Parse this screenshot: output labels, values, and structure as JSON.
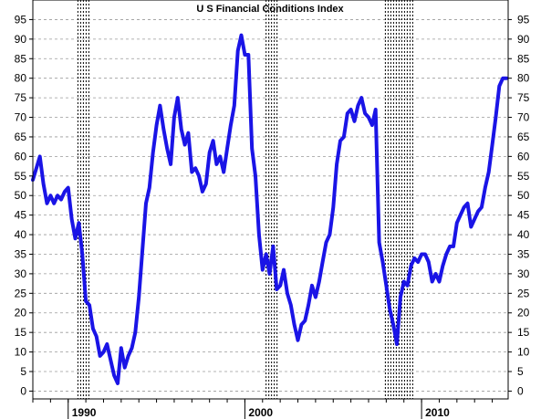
{
  "chart_data": {
    "type": "line",
    "title": "U S Financial Conditions Index",
    "xlabel": "",
    "ylabel": "",
    "x_start": 1988,
    "x_end": 2014.9,
    "ylim": [
      -2,
      100
    ],
    "grid": true,
    "y_ticks": [
      "0",
      "5",
      "10",
      "15",
      "20",
      "25",
      "30",
      "35",
      "40",
      "45",
      "50",
      "55",
      "60",
      "65",
      "70",
      "75",
      "80",
      "85",
      "90",
      "95"
    ],
    "x_tick_labels": [
      {
        "year": 1990,
        "label": "1990"
      },
      {
        "year": 2000,
        "label": "2000"
      },
      {
        "year": 2010,
        "label": "2010"
      }
    ],
    "shaded_periods": [
      {
        "start": 1990.55,
        "end": 1991.2
      },
      {
        "start": 2001.2,
        "end": 2001.9
      },
      {
        "start": 2007.95,
        "end": 2009.5
      }
    ],
    "series": [
      {
        "color": "#1a14e6",
        "x": [
          1988.0,
          1988.2,
          1988.4,
          1988.6,
          1988.8,
          1989.0,
          1989.2,
          1989.4,
          1989.6,
          1989.8,
          1990.0,
          1990.2,
          1990.4,
          1990.6,
          1990.8,
          1991.0,
          1991.2,
          1991.4,
          1991.6,
          1991.8,
          1992.0,
          1992.2,
          1992.4,
          1992.6,
          1992.8,
          1993.0,
          1993.2,
          1993.4,
          1993.6,
          1993.8,
          1994.0,
          1994.2,
          1994.4,
          1994.6,
          1994.8,
          1995.0,
          1995.2,
          1995.4,
          1995.6,
          1995.8,
          1996.0,
          1996.2,
          1996.4,
          1996.6,
          1996.8,
          1997.0,
          1997.2,
          1997.4,
          1997.6,
          1997.8,
          1998.0,
          1998.2,
          1998.4,
          1998.6,
          1998.8,
          1999.0,
          1999.2,
          1999.4,
          1999.6,
          1999.8,
          2000.0,
          2000.2,
          2000.4,
          2000.6,
          2000.8,
          2001.0,
          2001.2,
          2001.4,
          2001.6,
          2001.8,
          2002.0,
          2002.2,
          2002.4,
          2002.6,
          2002.8,
          2003.0,
          2003.2,
          2003.4,
          2003.6,
          2003.8,
          2004.0,
          2004.2,
          2004.4,
          2004.6,
          2004.8,
          2005.0,
          2005.2,
          2005.4,
          2005.6,
          2005.8,
          2006.0,
          2006.2,
          2006.4,
          2006.6,
          2006.8,
          2007.0,
          2007.2,
          2007.4,
          2007.6,
          2007.8,
          2008.0,
          2008.2,
          2008.4,
          2008.6,
          2008.8,
          2009.0,
          2009.2,
          2009.4,
          2009.6,
          2009.8,
          2010.0,
          2010.2,
          2010.4,
          2010.6,
          2010.8,
          2011.0,
          2011.2,
          2011.4,
          2011.6,
          2011.8,
          2012.0,
          2012.2,
          2012.4,
          2012.6,
          2012.8,
          2013.0,
          2013.2,
          2013.4,
          2013.6,
          2013.8,
          2014.0,
          2014.2,
          2014.4,
          2014.6,
          2014.8
        ],
        "y": [
          54,
          57,
          60,
          53,
          48,
          50,
          48,
          50,
          49,
          51,
          52,
          44,
          39,
          43,
          35,
          23,
          22,
          16,
          14,
          9,
          10,
          12,
          8,
          4,
          2,
          11,
          6,
          9,
          11,
          15,
          24,
          36,
          48,
          52,
          61,
          68,
          73,
          67,
          62,
          58,
          70,
          75,
          67,
          63,
          66,
          56,
          57,
          55,
          51,
          53,
          61,
          64,
          58,
          60,
          56,
          62,
          68,
          73,
          87,
          91,
          86,
          86,
          62,
          55,
          40,
          31,
          35,
          30,
          37,
          26,
          27,
          31,
          25,
          22,
          17,
          13,
          17,
          18,
          22,
          27,
          24,
          28,
          33,
          38,
          40,
          47,
          58,
          64,
          65,
          71,
          72,
          69,
          73,
          75,
          71,
          70,
          68,
          72,
          38,
          33,
          27,
          21,
          17,
          12,
          24,
          28,
          27,
          32,
          34,
          33,
          35,
          35,
          33,
          28,
          30,
          28,
          32,
          35,
          37,
          37,
          43,
          45,
          47,
          48,
          42,
          44,
          46,
          47,
          52,
          56,
          63,
          70,
          78,
          80,
          80
        ]
      }
    ]
  }
}
